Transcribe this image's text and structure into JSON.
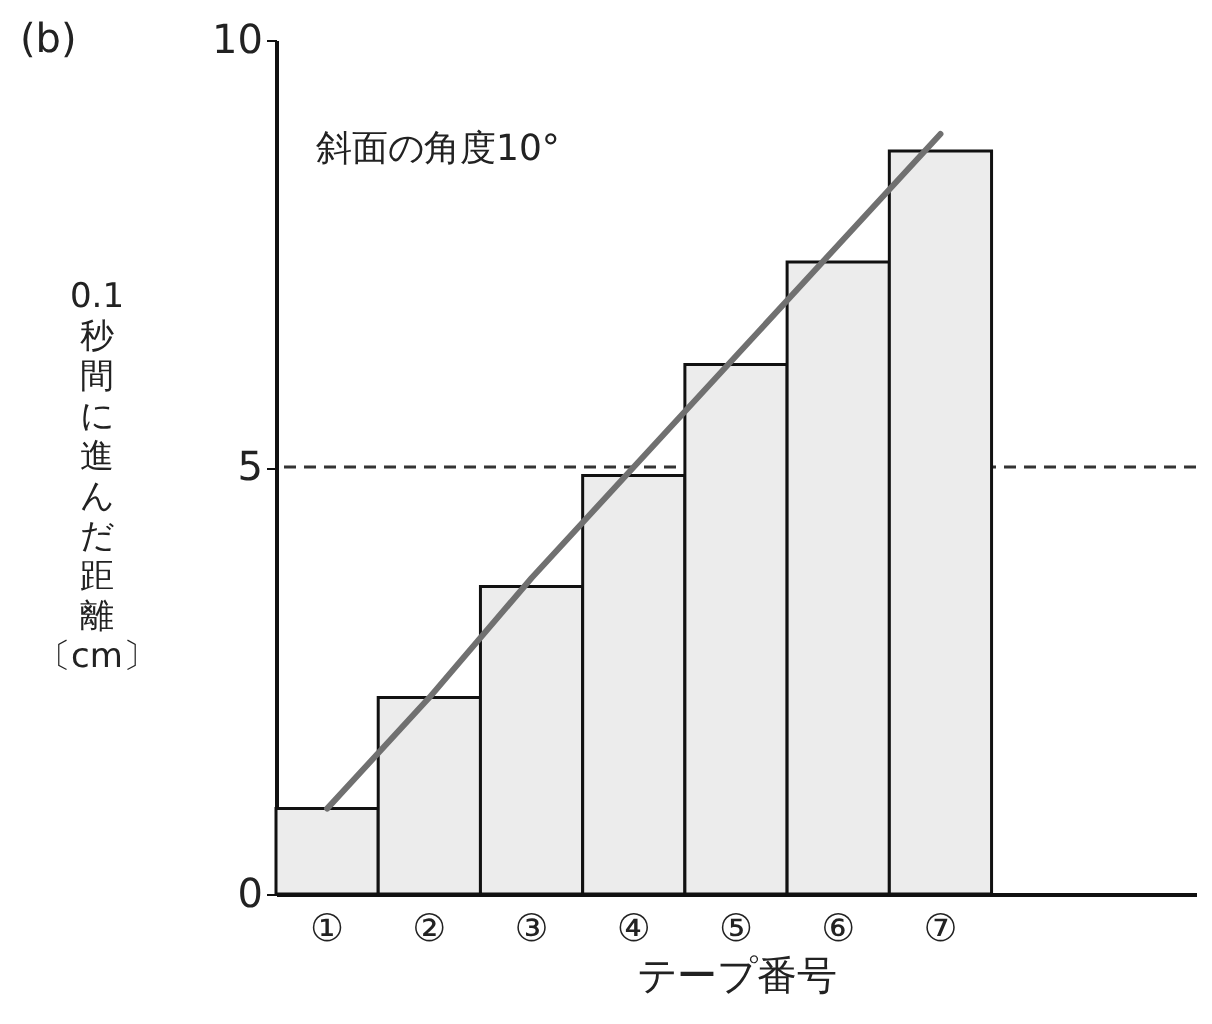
{
  "chart_data": {
    "type": "bar",
    "title": "(b)",
    "categories": [
      "①",
      "②",
      "③",
      "④",
      "⑤",
      "⑥",
      "⑦"
    ],
    "series": [
      {
        "type": "bar",
        "color": "#ececec",
        "values": [
          1.0,
          2.3,
          3.6,
          4.9,
          6.2,
          7.4,
          8.7
        ]
      },
      {
        "type": "line",
        "color": "#707070",
        "x": [
          "①",
          "②",
          "③",
          "④",
          "⑤",
          "⑥",
          "⑦"
        ],
        "values": [
          1.0,
          2.3,
          3.7,
          5.0,
          6.3,
          7.6,
          8.9
        ]
      }
    ],
    "ylim": [
      0,
      10
    ],
    "yticks": [
      0,
      5,
      10
    ],
    "xlabel": "テープ番号",
    "ylabel": "0.1秒間に進んだ距離〔cm〕",
    "annotations": [
      "斜面の角度10°"
    ],
    "ref_lines": [
      {
        "axis": "y",
        "value": 5,
        "line_style": "dashed"
      }
    ],
    "grid": false
  }
}
